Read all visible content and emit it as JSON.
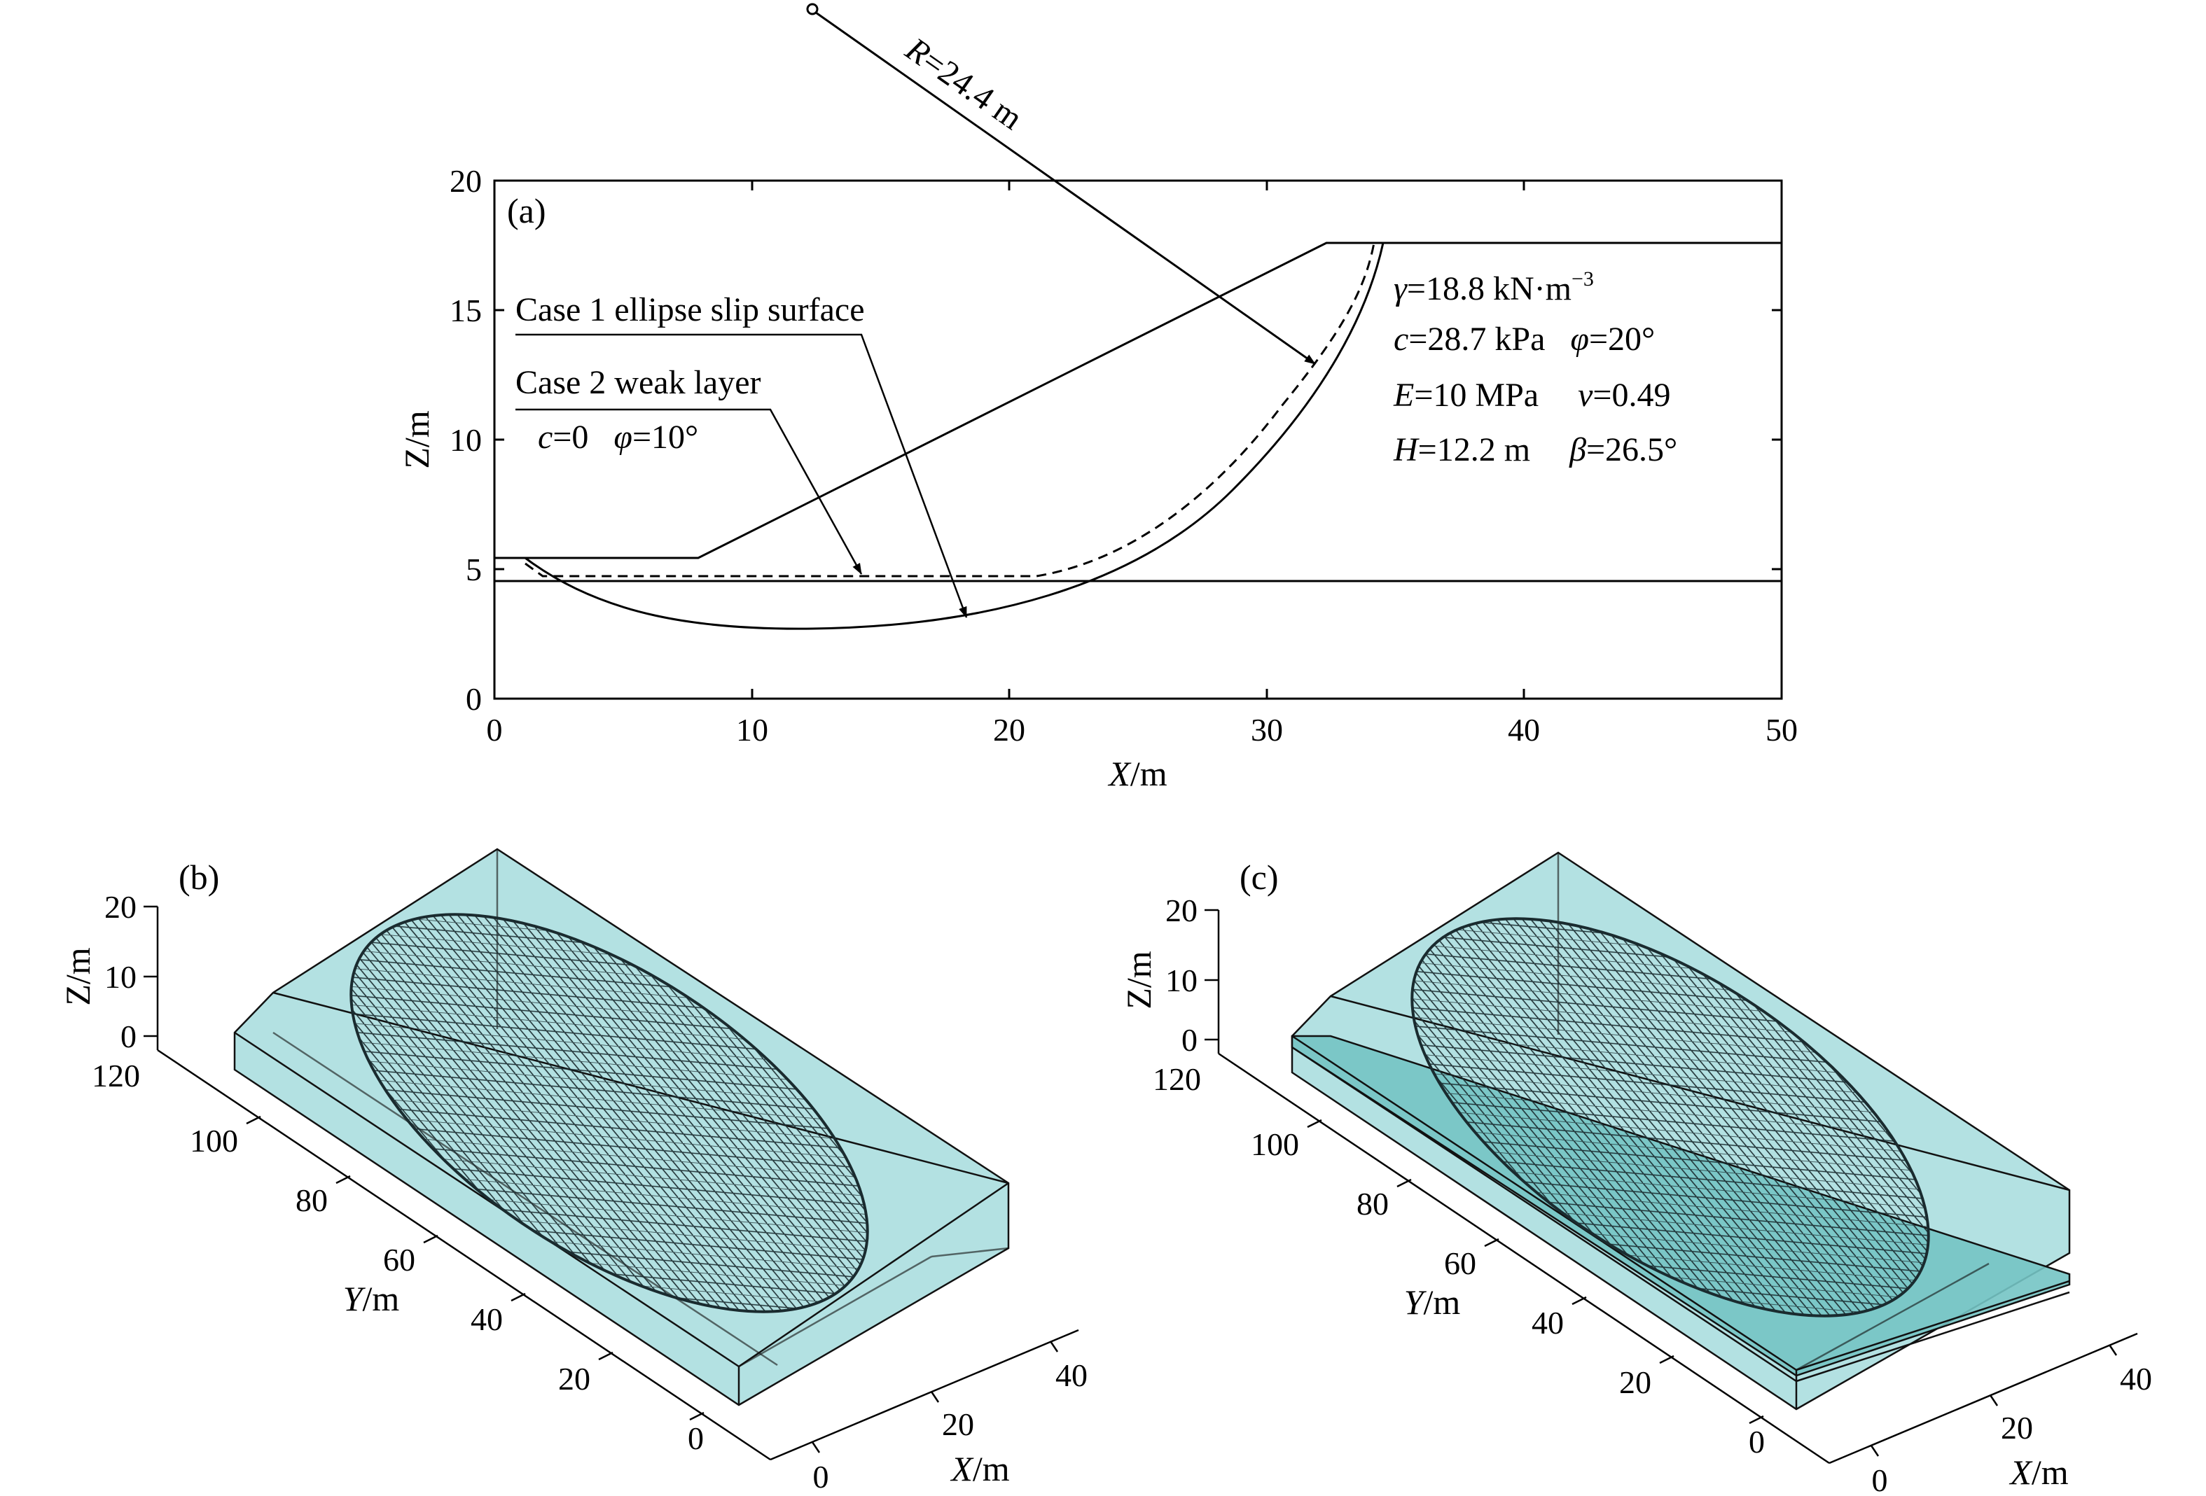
{
  "panel_a": {
    "label": "(a)",
    "x_ticks": [
      "0",
      "10",
      "20",
      "30",
      "40",
      "50"
    ],
    "z_ticks": [
      "0",
      "5",
      "10",
      "15",
      "20"
    ],
    "x_axis_label_var": "X",
    "x_axis_label_unit": "/m",
    "z_axis_label": "Z/m",
    "radius_label_var": "R",
    "radius_label_value": "=24.4 m",
    "case1_label": "Case 1 ellipse slip surface",
    "case2_label": "Case 2 weak layer",
    "case2_params": {
      "c_var": "c",
      "c_val": "=0",
      "phi_var": "φ",
      "phi_val": "=10°"
    },
    "params": {
      "gamma_var": "γ",
      "gamma_val": "=18.8 kN·m",
      "gamma_exp": "−3",
      "c_var": "c",
      "c_val": "=28.7 kPa",
      "phi_var": "φ",
      "phi_val": "=20°",
      "E_var": "E",
      "E_val": "=10 MPa",
      "nu_var": "ν",
      "nu_val": "=0.49",
      "H_var": "H",
      "H_val": "=12.2 m",
      "beta_var": "β",
      "beta_val": "=26.5°"
    }
  },
  "panel_b": {
    "label": "(b)",
    "z_ticks": [
      "0",
      "10",
      "20"
    ],
    "y_ticks": [
      "0",
      "20",
      "40",
      "60",
      "80",
      "100",
      "120"
    ],
    "x_ticks": [
      "0",
      "20",
      "40"
    ],
    "z_axis_label": "Z/m",
    "y_axis_label_var": "Y",
    "y_axis_label_unit": "/m",
    "x_axis_label_var": "X",
    "x_axis_label_unit": "/m"
  },
  "panel_c": {
    "label": "(c)",
    "z_ticks": [
      "0",
      "10",
      "20"
    ],
    "y_ticks": [
      "0",
      "20",
      "40",
      "60",
      "80",
      "100",
      "120"
    ],
    "x_ticks": [
      "0",
      "20",
      "40"
    ],
    "z_axis_label": "Z/m",
    "y_axis_label_var": "Y",
    "y_axis_label_unit": "/m",
    "x_axis_label_var": "X",
    "x_axis_label_unit": "/m"
  },
  "colors": {
    "slope_fill": "#a6dcdd",
    "weak_layer_fill": "#74c4c4",
    "mesh": "#1a2b2f"
  }
}
